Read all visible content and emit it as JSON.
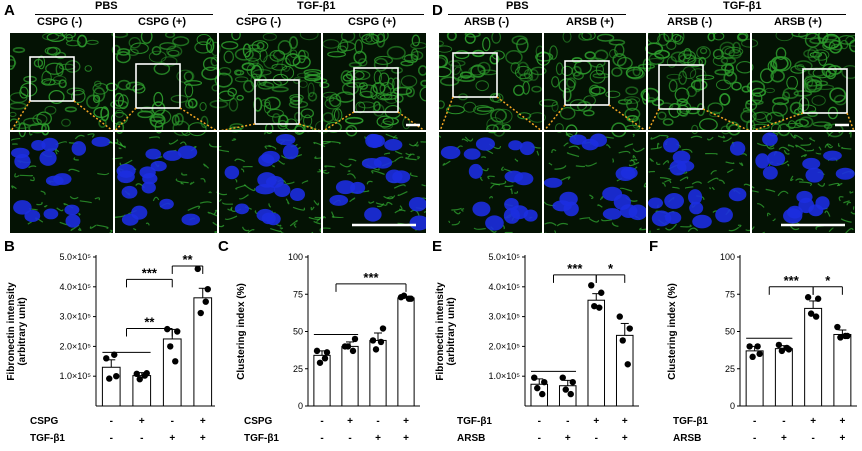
{
  "panel_letters": {
    "A": "A",
    "B": "B",
    "C": "C",
    "D": "D",
    "E": "E",
    "F": "F"
  },
  "panel_A": {
    "group_left": "PBS",
    "group_right": "TGF-β1",
    "columns": [
      "CSPG (-)",
      "CSPG (+)",
      "CSPG (-)",
      "CSPG (+)"
    ]
  },
  "panel_D": {
    "group_left": "PBS",
    "group_right": "TGF-β1",
    "columns": [
      "ARSB (-)",
      "ARSB (+)",
      "ARSB (-)",
      "ARSB (+)"
    ]
  },
  "colors": {
    "green": "#33b033",
    "blue": "#1c2ee0",
    "orange": "#f5a623",
    "bar_edge": "#000000"
  },
  "chart_data": [
    {
      "id": "B",
      "type": "bar",
      "ylabel": "Fibronectin intensity (arbitrary unit)",
      "ylabel_lines": [
        "Fibronectin intensity",
        "(arbitrary unit)"
      ],
      "ylim": [
        0,
        500000
      ],
      "yticks": [
        "1.0×10⁵",
        "2.0×10⁵",
        "3.0×10⁵",
        "4.0×10⁵",
        "5.0×10⁵"
      ],
      "ytick_values": [
        100000,
        200000,
        300000,
        400000,
        500000
      ],
      "row_labels": [
        "CSPG",
        "TGF-β1"
      ],
      "rows": [
        [
          "-",
          "+",
          "-",
          "+"
        ],
        [
          "-",
          "-",
          "+",
          "+"
        ]
      ],
      "values": [
        130000,
        102000,
        225000,
        363000
      ],
      "errors": [
        25000,
        10000,
        32000,
        32000
      ],
      "points": [
        [
          160000,
          100000,
          92000,
          172000
        ],
        [
          108000,
          110000,
          90000,
          102000
        ],
        [
          258000,
          250000,
          200000,
          150000
        ],
        [
          460000,
          392000,
          312000,
          350000
        ]
      ],
      "significance": [
        {
          "from": 0,
          "to": 2,
          "label": "***",
          "level": 425000,
          "to_group": true
        },
        {
          "from": 0,
          "to": 2,
          "label": "**",
          "level": 260000,
          "to_group": true
        },
        {
          "from": 2,
          "to": 3,
          "label": "**",
          "level": 470000,
          "to_group": false
        }
      ]
    },
    {
      "id": "C",
      "type": "bar",
      "ylabel": "Clustering index (%)",
      "ylim": [
        0,
        100
      ],
      "yticks": [
        "0",
        "25",
        "50",
        "75",
        "100"
      ],
      "ytick_values": [
        0,
        25,
        50,
        75,
        100
      ],
      "row_labels": [
        "CSPG",
        "TGF-β1"
      ],
      "rows": [
        [
          "-",
          "+",
          "-",
          "+"
        ],
        [
          "-",
          "-",
          "+",
          "+"
        ]
      ],
      "values": [
        34,
        40,
        44,
        72.5
      ],
      "errors": [
        3,
        3,
        5,
        1
      ],
      "points": [
        [
          37,
          36,
          29,
          32
        ],
        [
          40,
          45,
          40,
          37
        ],
        [
          44,
          52,
          38,
          43
        ],
        [
          73,
          72,
          74,
          72
        ]
      ],
      "significance": [
        {
          "from": 0,
          "to": 3,
          "label": "***",
          "level": 82,
          "to_group": true
        }
      ]
    },
    {
      "id": "E",
      "type": "bar",
      "ylabel": "Fibronectin intensity (arbitrary unit)",
      "ylabel_lines": [
        "Fibronectin intensity",
        "(arbitrary unit)"
      ],
      "ylim": [
        0,
        500000
      ],
      "yticks": [
        "1.0×10⁵",
        "2.0×10⁵",
        "3.0×10⁵",
        "4.0×10⁵",
        "5.0×10⁵"
      ],
      "ytick_values": [
        100000,
        200000,
        300000,
        400000,
        500000
      ],
      "row_labels": [
        "TGF-β1",
        "ARSB"
      ],
      "rows": [
        [
          "-",
          "-",
          "+",
          "+"
        ],
        [
          "-",
          "+",
          "-",
          "+"
        ]
      ],
      "values": [
        73000,
        68000,
        355000,
        237000
      ],
      "errors": [
        18000,
        18000,
        22000,
        40000
      ],
      "points": [
        [
          95000,
          80000,
          60000,
          40000
        ],
        [
          95000,
          80000,
          55000,
          40000
        ],
        [
          405000,
          380000,
          335000,
          330000
        ],
        [
          300000,
          260000,
          220000,
          140000
        ]
      ],
      "significance": [
        {
          "from": 0,
          "to": 2,
          "label": "***",
          "level": 440000,
          "to_group": true
        },
        {
          "from": 2,
          "to": 3,
          "label": "*",
          "level": 440000,
          "to_group": false
        }
      ]
    },
    {
      "id": "F",
      "type": "bar",
      "ylabel": "Clustering index (%)",
      "ylim": [
        0,
        100
      ],
      "yticks": [
        "0",
        "25",
        "50",
        "75",
        "100"
      ],
      "ytick_values": [
        0,
        25,
        50,
        75,
        100
      ],
      "row_labels": [
        "TGF-β1",
        "ARSB"
      ],
      "rows": [
        [
          "-",
          "-",
          "+",
          "+"
        ],
        [
          "-",
          "+",
          "-",
          "+"
        ]
      ],
      "values": [
        37,
        38.5,
        65.5,
        48
      ],
      "errors": [
        3,
        2,
        5,
        3
      ],
      "points": [
        [
          40,
          35,
          33,
          40
        ],
        [
          41,
          38,
          37,
          39
        ],
        [
          73,
          72,
          62,
          60
        ],
        [
          53,
          47,
          46,
          47
        ]
      ],
      "significance": [
        {
          "from": 0,
          "to": 2,
          "label": "***",
          "level": 80,
          "to_group": true
        },
        {
          "from": 2,
          "to": 3,
          "label": "*",
          "level": 80,
          "to_group": false
        }
      ]
    }
  ]
}
